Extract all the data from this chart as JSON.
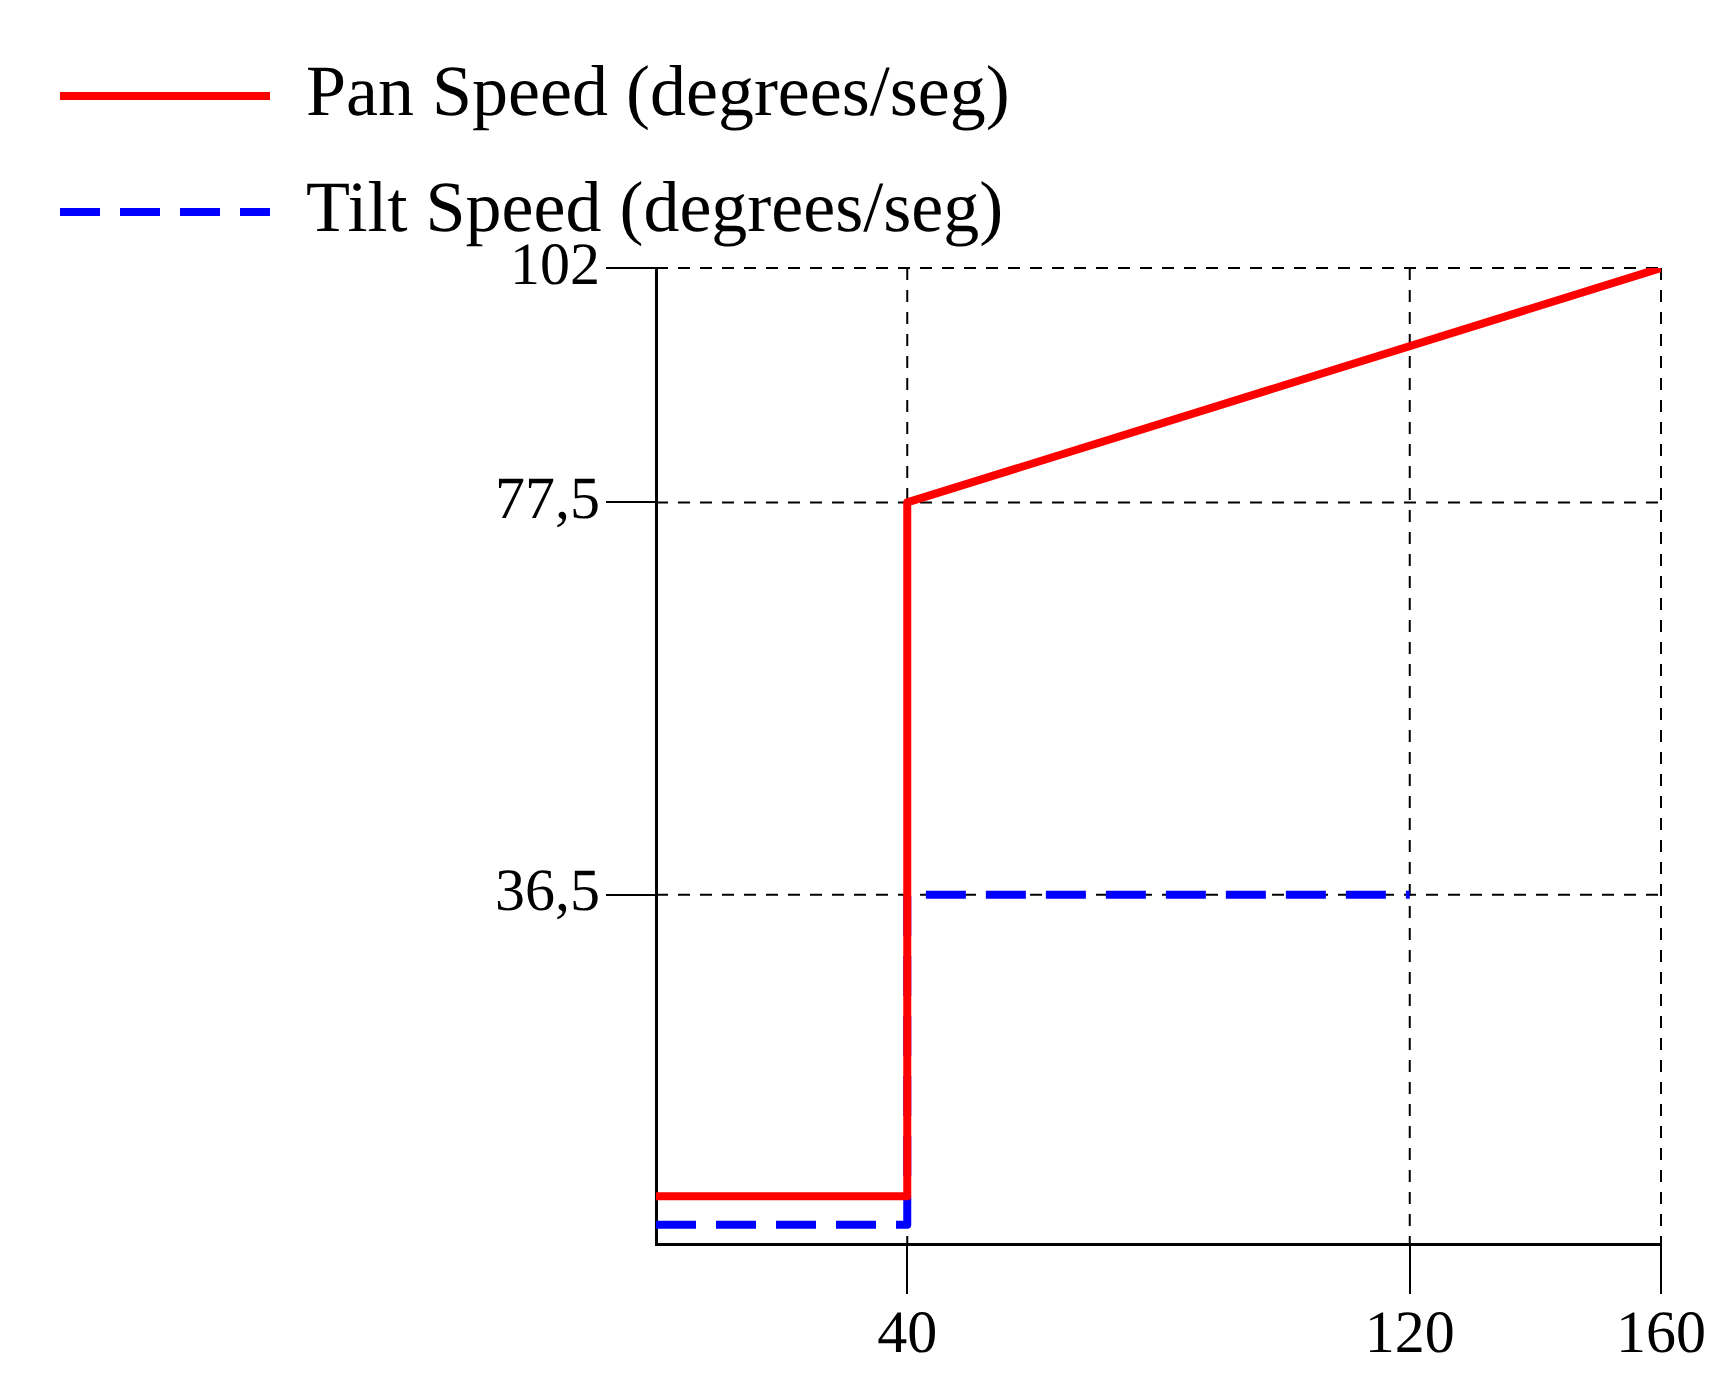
{
  "chart_data": {
    "type": "line",
    "xlim": [
      0,
      160
    ],
    "ylim": [
      0,
      102
    ],
    "xticks": [
      40,
      120,
      160
    ],
    "yticks": [
      {
        "value": 36.5,
        "label": "36,5"
      },
      {
        "value": 77.5,
        "label": "77,5"
      },
      102
    ],
    "grid": true,
    "legend": "top left",
    "marker": "none",
    "series": [
      {
        "name": "Pan Speed (degrees/seg)",
        "color": "#ff0000",
        "x": [
          0,
          40,
          40,
          160
        ],
        "values": [
          5,
          5,
          77.5,
          102
        ],
        "line_style": "solid"
      },
      {
        "name": "Tilt Speed (degrees/seg)",
        "color": "#0000ff",
        "x": [
          0,
          40,
          40,
          120
        ],
        "values": [
          2,
          2,
          36.5,
          36.5
        ],
        "line_style": "dashed"
      }
    ]
  }
}
